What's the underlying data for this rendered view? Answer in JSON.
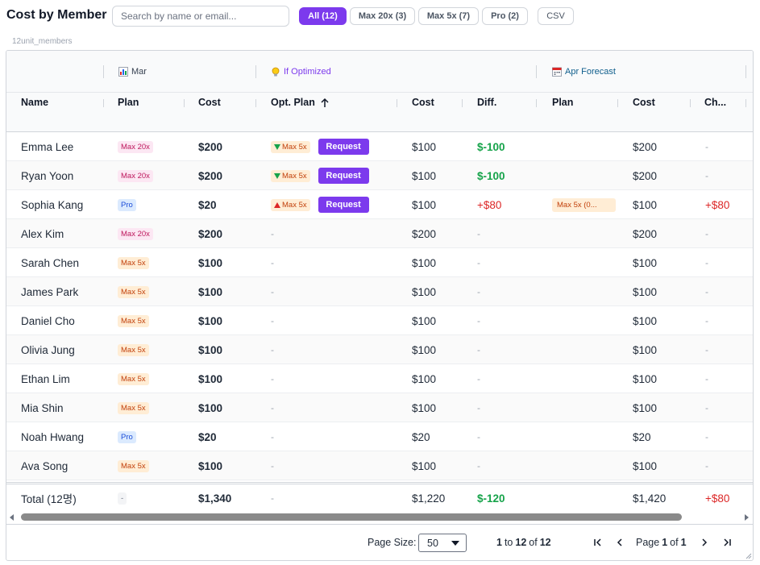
{
  "header": {
    "title": "Cost by Member",
    "search_placeholder": "Search by name or email...",
    "filters": [
      {
        "label": "All (12)",
        "active": true
      },
      {
        "label": "Max 20x (3)",
        "active": false
      },
      {
        "label": "Max 5x (7)",
        "active": false
      },
      {
        "label": "Pro (2)",
        "active": false
      }
    ],
    "csv_label": "CSV",
    "subtitle": "12unit_members"
  },
  "groups": {
    "mar": {
      "label": "Mar",
      "icon": "bar-chart-icon",
      "color": "#374151"
    },
    "optimized": {
      "label": "If Optimized",
      "icon": "lightbulb-icon",
      "color": "#7c3aed"
    },
    "forecast": {
      "label": "Apr Forecast",
      "icon": "calendar-icon",
      "color": "#0f5e8c"
    }
  },
  "columns": {
    "name": "Name",
    "plan": "Plan",
    "cost": "Cost",
    "opt_plan": "Opt. Plan",
    "opt_cost": "Cost",
    "diff": "Diff.",
    "fc_plan": "Plan",
    "fc_cost": "Cost",
    "change": "Ch..."
  },
  "rows": [
    {
      "name": "Emma Lee",
      "plan": "Max 20x",
      "cost": "$200",
      "opt": "Max 5x",
      "opt_dir": "down",
      "request": "Request",
      "opt_cost": "$100",
      "diff": "$-100",
      "fc_plan": "",
      "fc_cost": "$200",
      "change": "-"
    },
    {
      "name": "Ryan Yoon",
      "plan": "Max 20x",
      "cost": "$200",
      "opt": "Max 5x",
      "opt_dir": "down",
      "request": "Request",
      "opt_cost": "$100",
      "diff": "$-100",
      "fc_plan": "",
      "fc_cost": "$200",
      "change": "-"
    },
    {
      "name": "Sophia Kang",
      "plan": "Pro",
      "cost": "$20",
      "opt": "Max 5x",
      "opt_dir": "up",
      "request": "Request",
      "opt_cost": "$100",
      "diff": "+$80",
      "fc_plan": "Max 5x (0...",
      "fc_cost": "$100",
      "change": "+$80"
    },
    {
      "name": "Alex Kim",
      "plan": "Max 20x",
      "cost": "$200",
      "opt": "-",
      "opt_cost": "$200",
      "diff": "-",
      "fc_plan": "",
      "fc_cost": "$200",
      "change": "-"
    },
    {
      "name": "Sarah Chen",
      "plan": "Max 5x",
      "cost": "$100",
      "opt": "-",
      "opt_cost": "$100",
      "diff": "-",
      "fc_plan": "",
      "fc_cost": "$100",
      "change": "-"
    },
    {
      "name": "James Park",
      "plan": "Max 5x",
      "cost": "$100",
      "opt": "-",
      "opt_cost": "$100",
      "diff": "-",
      "fc_plan": "",
      "fc_cost": "$100",
      "change": "-"
    },
    {
      "name": "Daniel Cho",
      "plan": "Max 5x",
      "cost": "$100",
      "opt": "-",
      "opt_cost": "$100",
      "diff": "-",
      "fc_plan": "",
      "fc_cost": "$100",
      "change": "-"
    },
    {
      "name": "Olivia Jung",
      "plan": "Max 5x",
      "cost": "$100",
      "opt": "-",
      "opt_cost": "$100",
      "diff": "-",
      "fc_plan": "",
      "fc_cost": "$100",
      "change": "-"
    },
    {
      "name": "Ethan Lim",
      "plan": "Max 5x",
      "cost": "$100",
      "opt": "-",
      "opt_cost": "$100",
      "diff": "-",
      "fc_plan": "",
      "fc_cost": "$100",
      "change": "-"
    },
    {
      "name": "Mia Shin",
      "plan": "Max 5x",
      "cost": "$100",
      "opt": "-",
      "opt_cost": "$100",
      "diff": "-",
      "fc_plan": "",
      "fc_cost": "$100",
      "change": "-"
    },
    {
      "name": "Noah Hwang",
      "plan": "Pro",
      "cost": "$20",
      "opt": "-",
      "opt_cost": "$20",
      "diff": "-",
      "fc_plan": "",
      "fc_cost": "$20",
      "change": "-"
    },
    {
      "name": "Ava Song",
      "plan": "Max 5x",
      "cost": "$100",
      "opt": "-",
      "opt_cost": "$100",
      "diff": "-",
      "fc_plan": "",
      "fc_cost": "$100",
      "change": "-"
    }
  ],
  "total": {
    "name": "Total (12명)",
    "plan": "-",
    "cost": "$1,340",
    "opt": "-",
    "opt_cost": "$1,220",
    "diff": "$-120",
    "fc_cost": "$1,420",
    "change": "+$80"
  },
  "pagination": {
    "page_size_label": "Page Size:",
    "page_size": "50",
    "from": "1",
    "to_word": "to",
    "to": "12",
    "of_word": "of",
    "count": "12",
    "page_word": "Page",
    "page": "1",
    "page_of_word": "of",
    "pages": "1"
  }
}
